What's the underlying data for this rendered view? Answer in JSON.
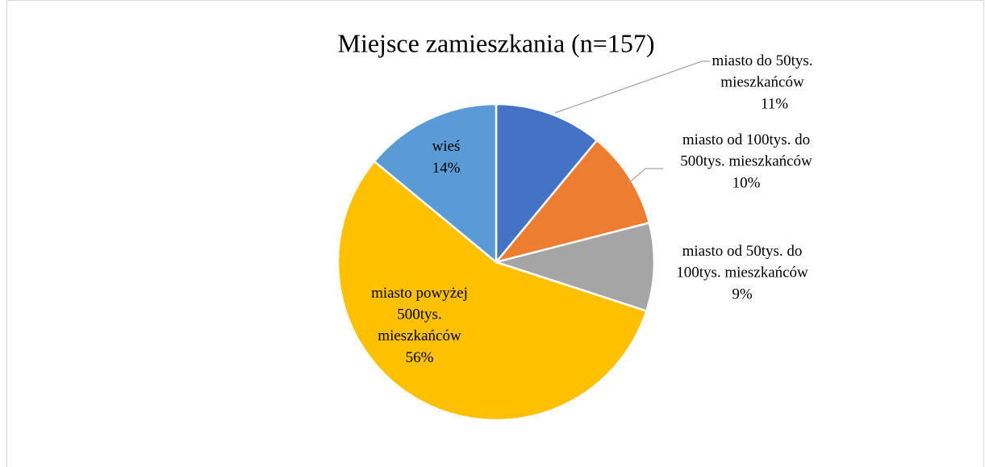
{
  "chart_data": {
    "type": "pie",
    "title": "Miejsce zamieszkania (n=157)",
    "categories": [
      "miasto do 50tys. mieszkańców",
      "miasto od 100tys. do 500tys. mieszkańców",
      "miasto od 50tys. do 100tys. mieszkańców",
      "miasto powyżej 500tys. mieszkańców",
      "wieś"
    ],
    "values": [
      11,
      10,
      9,
      56,
      14
    ],
    "value_labels": [
      "11%",
      "10%",
      "9%",
      "56%",
      "14%"
    ],
    "colors": [
      "#4472c4",
      "#ed7d31",
      "#a5a5a5",
      "#ffc000",
      "#5b9bd5"
    ]
  }
}
